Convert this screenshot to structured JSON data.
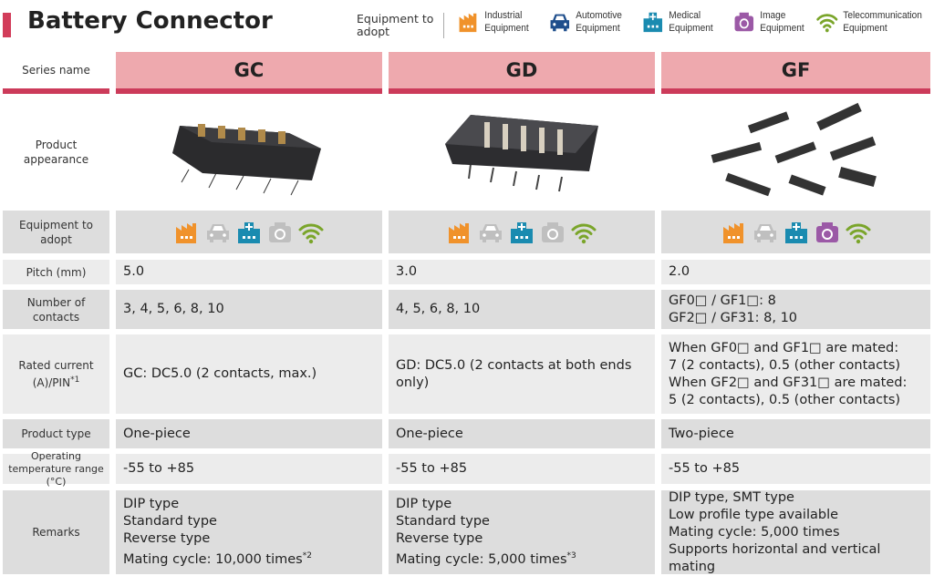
{
  "title": "Battery Connector",
  "legend": {
    "label": "Equipment to adopt",
    "items": [
      {
        "icon": "industrial-icon",
        "label": "Industrial Equipment",
        "color": "#f0922b"
      },
      {
        "icon": "automotive-icon",
        "label": "Automotive Equipment",
        "color": "#1f4e8c"
      },
      {
        "icon": "medical-icon",
        "label": "Medical Equipment",
        "color": "#1a8bb0"
      },
      {
        "icon": "image-icon",
        "label": "Image Equipment",
        "color": "#9b59a6"
      },
      {
        "icon": "telecommunication-icon",
        "label": "Telecommunication Equipment",
        "color": "#7aa52a"
      }
    ],
    "inactive_color": "#bfbfbf"
  },
  "row_labels": {
    "series": "Series name",
    "appearance": "Product appearance",
    "equipment": "Equipment to adopt",
    "pitch": "Pitch (mm)",
    "contacts": "Number of contacts",
    "rated": "Rated current (A)/PIN",
    "rated_note": "*1",
    "type": "Product type",
    "temp": "Operating temperature range (°C)",
    "remarks": "Remarks"
  },
  "series": [
    {
      "name": "GC",
      "equipment": [
        true,
        false,
        true,
        false,
        true
      ],
      "pitch": "5.0",
      "contacts": [
        "3, 4, 5, 6, 8, 10"
      ],
      "rated": [
        "GC: DC5.0 (2 contacts, max.)"
      ],
      "type": "One-piece",
      "temp": "-55 to +85",
      "remarks": [
        "DIP type",
        "Standard type",
        "Reverse type",
        "Mating cycle: 10,000 times"
      ],
      "remarks_note": "*2"
    },
    {
      "name": "GD",
      "equipment": [
        true,
        false,
        true,
        false,
        true
      ],
      "pitch": "3.0",
      "contacts": [
        "4, 5, 6, 8, 10"
      ],
      "rated": [
        "GD: DC5.0 (2 contacts at both ends only)"
      ],
      "type": "One-piece",
      "temp": "-55 to +85",
      "remarks": [
        "DIP type",
        "Standard type",
        "Reverse type",
        "Mating cycle: 5,000 times"
      ],
      "remarks_note": "*3"
    },
    {
      "name": "GF",
      "equipment": [
        true,
        false,
        true,
        true,
        true
      ],
      "pitch": "2.0",
      "contacts": [
        "GF0□ / GF1□: 8",
        "GF2□ / GF31: 8, 10"
      ],
      "rated": [
        "When GF0□ and GF1□ are mated:",
        "7 (2 contacts), 0.5 (other contacts)",
        "When GF2□ and GF31□ are mated:",
        "5 (2 contacts), 0.5 (other contacts)"
      ],
      "type": "Two-piece",
      "temp": "-55 to +85",
      "remarks": [
        "DIP type, SMT type",
        "Low profile type available",
        "Mating cycle: 5,000 times",
        "Supports horizontal and vertical mating"
      ],
      "remarks_note": ""
    }
  ]
}
